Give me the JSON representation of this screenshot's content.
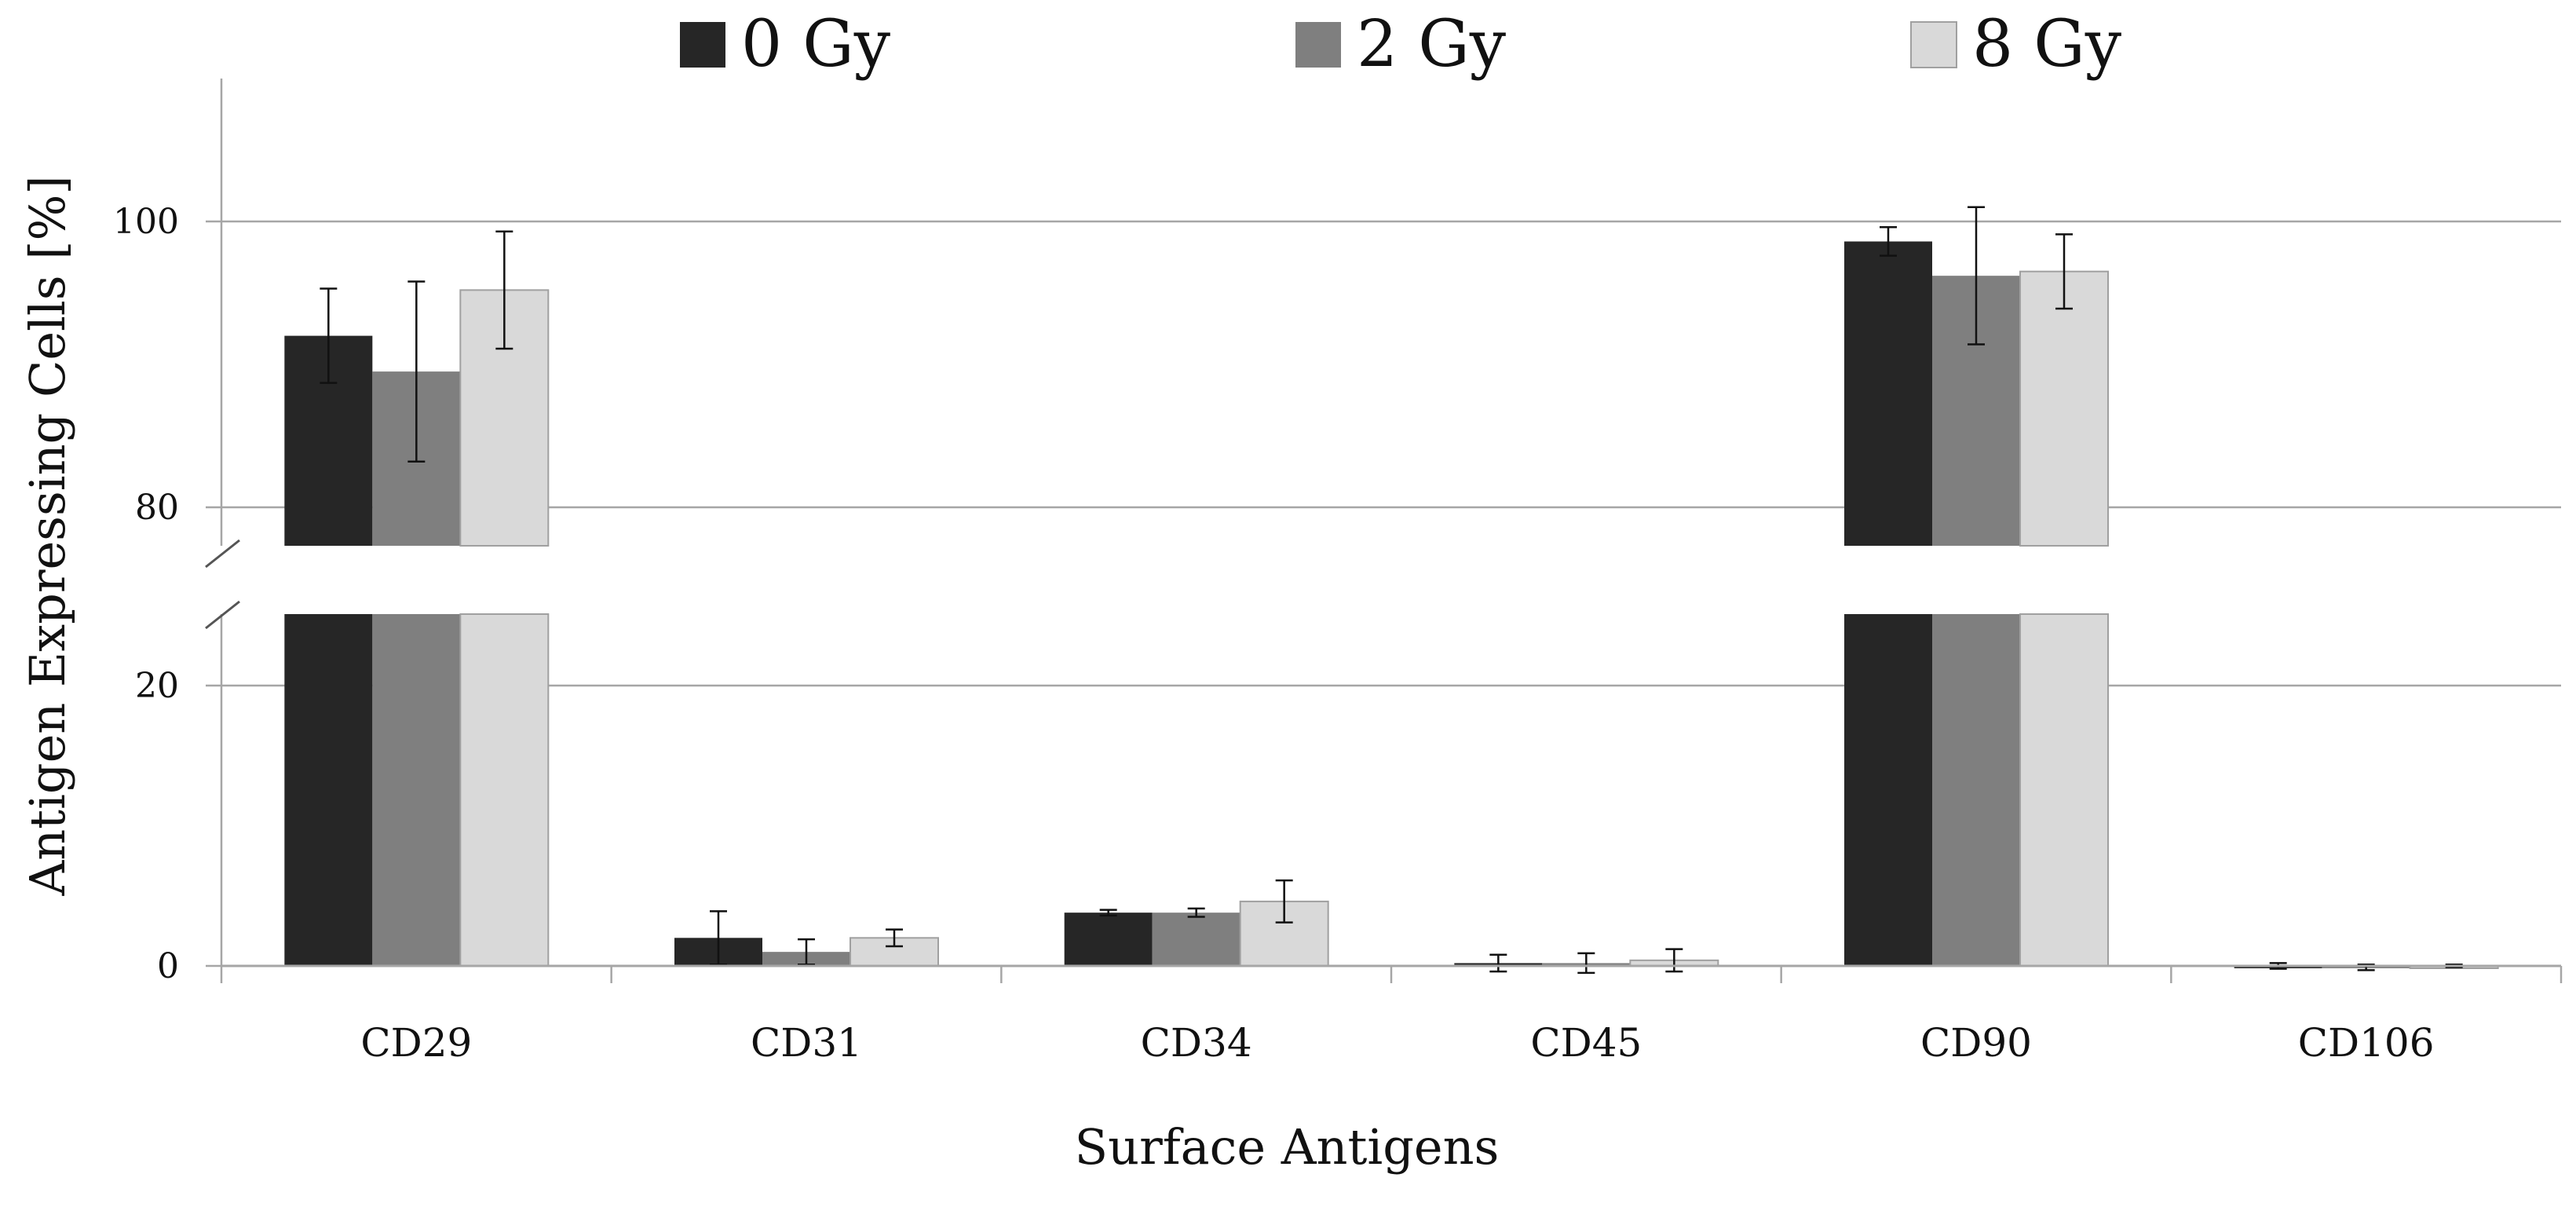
{
  "chart_data": {
    "type": "bar",
    "title": "",
    "xlabel": "Surface Antigens",
    "ylabel": "Antigen Expressing Cells [%]",
    "categories": [
      "CD29",
      "CD31",
      "CD34",
      "CD45",
      "CD90",
      "CD106"
    ],
    "axis_break": {
      "lower_range": [
        0,
        25
      ],
      "upper_range": [
        77,
        110
      ]
    },
    "y_ticks": [
      {
        "label": "0",
        "value": 0
      },
      {
        "label": "20",
        "value": 20
      },
      {
        "label": "80",
        "value": 80
      },
      {
        "label": "100",
        "value": 100
      }
    ],
    "grid": true,
    "legend_position": "top",
    "series": [
      {
        "name": "0 Gy",
        "color": "#262626",
        "values": [
          92.0,
          2.0,
          3.8,
          0.2,
          98.6,
          0.0
        ],
        "errors": [
          3.3,
          1.9,
          0.2,
          0.6,
          1.0,
          0.2
        ]
      },
      {
        "name": "2 Gy",
        "color": "#7f7f7f",
        "values": [
          89.5,
          1.0,
          3.8,
          0.2,
          96.2,
          -0.1
        ],
        "errors": [
          6.3,
          0.9,
          0.3,
          0.7,
          4.8,
          0.2
        ]
      },
      {
        "name": "8 Gy",
        "color": "#d9d9d9",
        "values": [
          95.2,
          2.0,
          4.6,
          0.4,
          96.5,
          0.0
        ],
        "errors": [
          4.1,
          0.6,
          1.5,
          0.8,
          2.6,
          0.1
        ]
      }
    ]
  }
}
